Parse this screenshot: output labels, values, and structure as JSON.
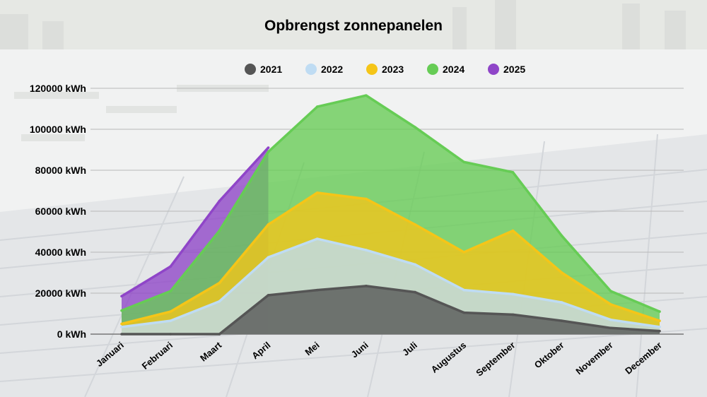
{
  "chart_data": {
    "type": "area",
    "title": "Opbrengst zonnepanelen",
    "categories": [
      "Januari",
      "Februari",
      "Maart",
      "April",
      "Mei",
      "Juni",
      "Juli",
      "Augustus",
      "September",
      "Oktober",
      "November",
      "December"
    ],
    "yticks": [
      "0 kWh",
      "20000 kWh",
      "40000 kWh",
      "60000 kWh",
      "80000 kWh",
      "100000 kWh",
      "120000 kWh"
    ],
    "ylim": [
      0,
      120000
    ],
    "grid": true,
    "legend_position": "top",
    "stacked_display": "overlapping areas",
    "series": [
      {
        "name": "2021",
        "color": "#555555",
        "values": [
          0,
          0,
          0,
          19000,
          21500,
          23500,
          20500,
          10500,
          9500,
          6500,
          3000,
          1500
        ]
      },
      {
        "name": "2022",
        "color": "#bfdcf3",
        "values": [
          3500,
          6500,
          16000,
          37500,
          46500,
          41000,
          34000,
          21500,
          19500,
          15500,
          7000,
          3500
        ]
      },
      {
        "name": "2023",
        "color": "#f5c518",
        "values": [
          5000,
          11000,
          25000,
          53500,
          69000,
          66000,
          53500,
          40000,
          50500,
          30000,
          14500,
          6500
        ]
      },
      {
        "name": "2024",
        "color": "#66cc55",
        "values": [
          11500,
          21000,
          50500,
          89000,
          111000,
          116500,
          101000,
          84000,
          79000,
          48000,
          21000,
          11000
        ]
      },
      {
        "name": "2025",
        "color": "#8f45c8",
        "values": [
          18500,
          33000,
          65000,
          91000,
          null,
          null,
          null,
          null,
          null,
          null,
          null,
          null
        ]
      }
    ]
  }
}
